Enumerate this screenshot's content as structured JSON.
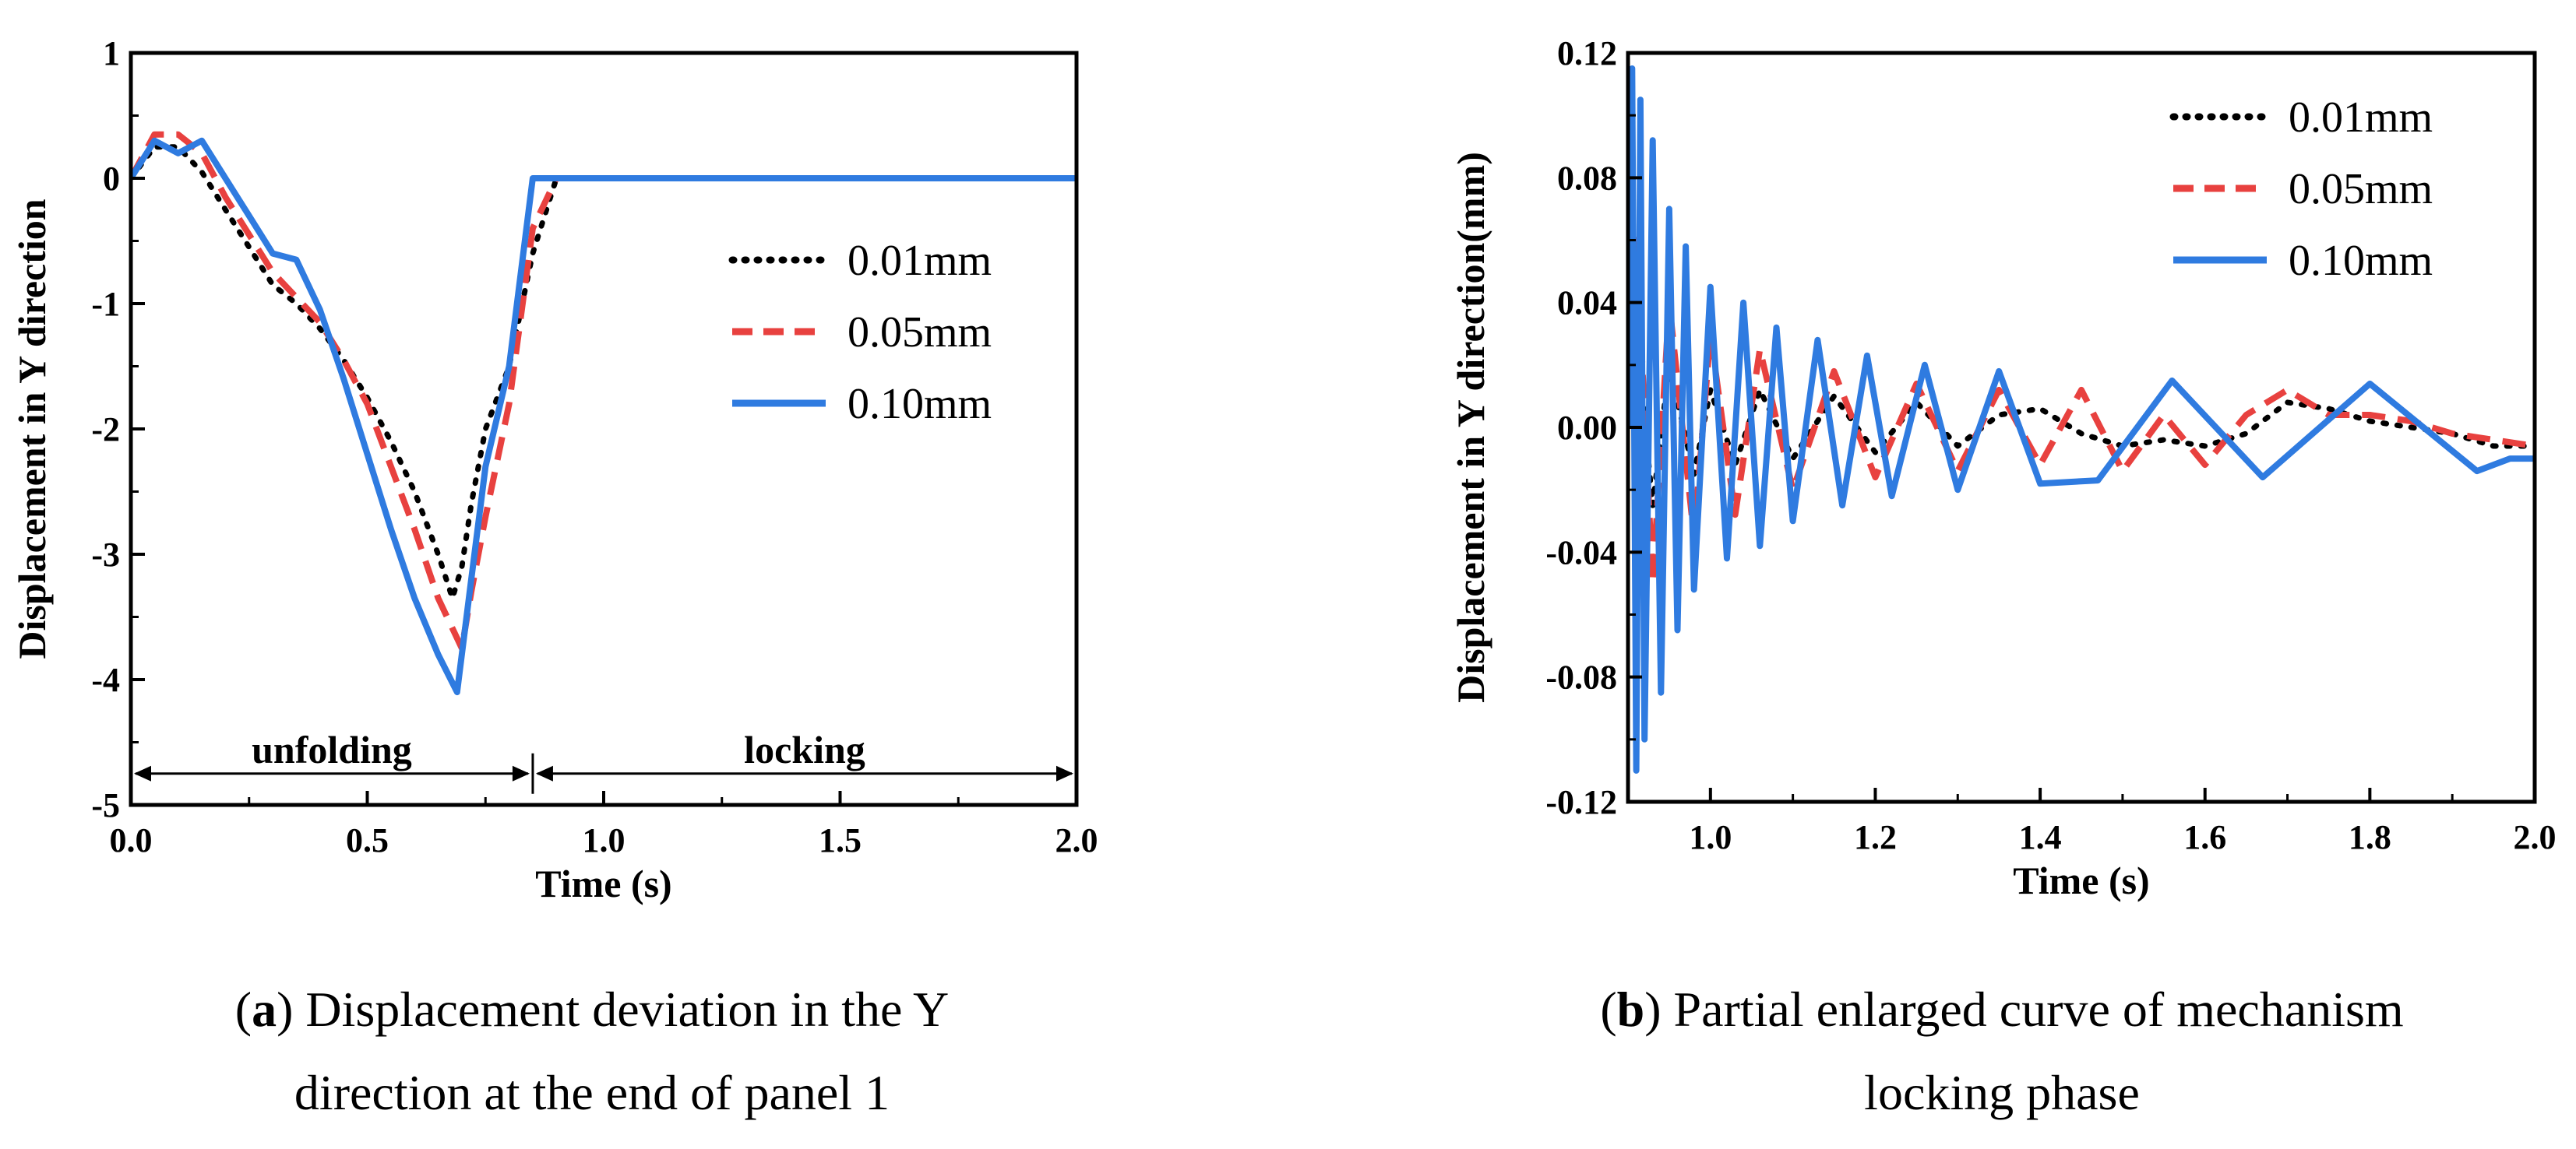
{
  "colors": {
    "s1": "#000000",
    "s2": "#e8413f",
    "s3": "#2f7be0"
  },
  "chart_data": [
    {
      "type": "line",
      "panel": "a",
      "caption_letter": "a",
      "caption_lines": [
        ") Displacement deviation in the Y",
        "direction at the end of panel 1"
      ],
      "xlabel": "Time (s)",
      "ylabel": "Displacement in Y direction",
      "xlim": [
        0,
        2.0
      ],
      "ylim": [
        -5,
        1
      ],
      "xticks": [
        0.0,
        0.5,
        1.0,
        1.5,
        2.0
      ],
      "xtick_labels": [
        "0.0",
        "0.5",
        "1.0",
        "1.5",
        "2.0"
      ],
      "yticks": [
        1,
        0,
        -1,
        -2,
        -3,
        -4,
        -5
      ],
      "ytick_labels": [
        "1",
        "0",
        "-1",
        "-2",
        "-3",
        "-4",
        "-5"
      ],
      "legend_position": "right",
      "annotations": [
        {
          "text": "unfolding",
          "x_from": 0.0,
          "x_to": 0.85,
          "y": -4.75
        },
        {
          "text": "locking",
          "x_from": 0.85,
          "x_to": 2.0,
          "y": -4.75
        }
      ],
      "series": [
        {
          "name": "0.01mm",
          "style": "dotted",
          "x": [
            0,
            0.05,
            0.1,
            0.15,
            0.2,
            0.25,
            0.3,
            0.35,
            0.4,
            0.45,
            0.5,
            0.55,
            0.6,
            0.65,
            0.68,
            0.7,
            0.72,
            0.75,
            0.8,
            0.85,
            0.9,
            1.0,
            1.5,
            2.0
          ],
          "y": [
            0,
            0.25,
            0.25,
            0.05,
            -0.25,
            -0.55,
            -0.85,
            -1.0,
            -1.2,
            -1.45,
            -1.75,
            -2.1,
            -2.5,
            -3.0,
            -3.35,
            -3.1,
            -2.6,
            -2.0,
            -1.5,
            -0.6,
            0.0,
            0.0,
            0.0,
            0.0
          ]
        },
        {
          "name": "0.05mm",
          "style": "dashed",
          "x": [
            0,
            0.05,
            0.1,
            0.15,
            0.2,
            0.25,
            0.3,
            0.35,
            0.4,
            0.45,
            0.5,
            0.55,
            0.6,
            0.65,
            0.7,
            0.72,
            0.75,
            0.8,
            0.85,
            0.9,
            1.0,
            1.5,
            2.0
          ],
          "y": [
            0,
            0.35,
            0.35,
            0.2,
            -0.15,
            -0.45,
            -0.75,
            -0.95,
            -1.15,
            -1.45,
            -1.8,
            -2.3,
            -2.8,
            -3.35,
            -3.75,
            -3.3,
            -2.7,
            -1.8,
            -0.4,
            0.0,
            0.0,
            0.0,
            0.0
          ]
        },
        {
          "name": "0.10mm",
          "style": "solid",
          "x": [
            0,
            0.05,
            0.1,
            0.15,
            0.2,
            0.25,
            0.3,
            0.35,
            0.4,
            0.45,
            0.5,
            0.55,
            0.6,
            0.65,
            0.69,
            0.72,
            0.75,
            0.8,
            0.85,
            0.9,
            1.0,
            1.5,
            2.0
          ],
          "y": [
            0,
            0.3,
            0.2,
            0.3,
            0.0,
            -0.3,
            -0.6,
            -0.65,
            -1.05,
            -1.6,
            -2.2,
            -2.8,
            -3.35,
            -3.8,
            -4.1,
            -3.2,
            -2.3,
            -1.5,
            0.0,
            0.0,
            0.0,
            0.0,
            0.0
          ]
        }
      ]
    },
    {
      "type": "line",
      "panel": "b",
      "caption_letter": "b",
      "caption_lines": [
        ") Partial enlarged curve of mechanism",
        "locking phase"
      ],
      "xlabel": "Time (s)",
      "ylabel": "Displacement in Y direction(mm)",
      "xlim": [
        0.9,
        2.0
      ],
      "ylim": [
        -0.12,
        0.12
      ],
      "xticks": [
        1.0,
        1.2,
        1.4,
        1.6,
        1.8,
        2.0
      ],
      "xtick_labels": [
        "1.0",
        "1.2",
        "1.4",
        "1.6",
        "1.8",
        "2.0"
      ],
      "yticks": [
        0.12,
        0.08,
        0.04,
        0.0,
        -0.04,
        -0.08,
        -0.12
      ],
      "ytick_labels": [
        "0.12",
        "0.08",
        "0.04",
        "0.00",
        "-0.04",
        "-0.08",
        "-0.12"
      ],
      "legend_position": "top-right",
      "series": [
        {
          "name": "0.01mm",
          "style": "dotted",
          "x": [
            0.9,
            0.91,
            0.93,
            0.95,
            0.98,
            1.0,
            1.03,
            1.06,
            1.1,
            1.15,
            1.2,
            1.25,
            1.3,
            1.35,
            1.4,
            1.45,
            1.5,
            1.55,
            1.6,
            1.65,
            1.7,
            1.75,
            1.8,
            1.85,
            1.9,
            1.95,
            2.0
          ],
          "y": [
            0.0,
            0.03,
            -0.025,
            0.02,
            -0.015,
            0.012,
            -0.012,
            0.012,
            -0.01,
            0.01,
            -0.008,
            0.008,
            -0.006,
            0.004,
            0.006,
            -0.002,
            -0.006,
            -0.004,
            -0.006,
            -0.002,
            0.008,
            0.006,
            0.002,
            0.0,
            -0.002,
            -0.006,
            -0.006
          ]
        },
        {
          "name": "0.05mm",
          "style": "dashed",
          "x": [
            0.9,
            0.91,
            0.93,
            0.95,
            0.98,
            1.0,
            1.03,
            1.06,
            1.1,
            1.15,
            1.2,
            1.25,
            1.3,
            1.35,
            1.4,
            1.45,
            1.5,
            1.55,
            1.6,
            1.65,
            1.7,
            1.75,
            1.8,
            1.85,
            1.9,
            1.95,
            2.0
          ],
          "y": [
            0.0,
            0.06,
            -0.05,
            0.04,
            -0.035,
            0.03,
            -0.028,
            0.025,
            -0.02,
            0.018,
            -0.016,
            0.014,
            -0.014,
            0.012,
            -0.012,
            0.012,
            -0.014,
            0.004,
            -0.012,
            0.004,
            0.012,
            0.004,
            0.004,
            0.002,
            -0.002,
            -0.004,
            -0.006
          ]
        },
        {
          "name": "0.10mm",
          "style": "solid",
          "x": [
            0.9,
            0.905,
            0.91,
            0.915,
            0.92,
            0.93,
            0.94,
            0.95,
            0.96,
            0.97,
            0.98,
            1.0,
            1.02,
            1.04,
            1.06,
            1.08,
            1.1,
            1.13,
            1.16,
            1.19,
            1.22,
            1.26,
            1.3,
            1.35,
            1.4,
            1.47,
            1.56,
            1.67,
            1.8,
            1.93,
            1.97,
            2.0
          ],
          "y": [
            0.0,
            0.115,
            -0.11,
            0.105,
            -0.1,
            0.092,
            -0.085,
            0.07,
            -0.065,
            0.058,
            -0.052,
            0.045,
            -0.042,
            0.04,
            -0.038,
            0.032,
            -0.03,
            0.028,
            -0.025,
            0.023,
            -0.022,
            0.02,
            -0.02,
            0.018,
            -0.018,
            -0.017,
            0.015,
            -0.016,
            0.014,
            -0.014,
            -0.01,
            -0.01
          ]
        }
      ]
    }
  ]
}
